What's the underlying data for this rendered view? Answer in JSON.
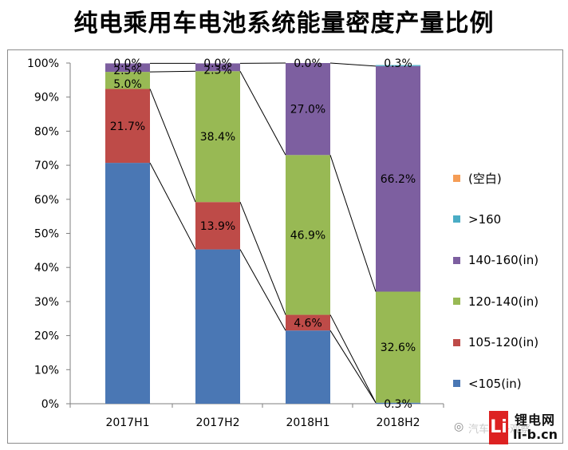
{
  "title": "纯电乘用车电池系统能量密度产量比例",
  "chart_data": {
    "type": "bar",
    "stacked": true,
    "percent": true,
    "categories": [
      "2017H1",
      "2017H2",
      "2018H1",
      "2018H2"
    ],
    "y_ticks": [
      "0%",
      "10%",
      "20%",
      "30%",
      "40%",
      "50%",
      "60%",
      "70%",
      "80%",
      "90%",
      "100%"
    ],
    "ylim": [
      0,
      100
    ],
    "series": [
      {
        "name": "<105(in)",
        "color": "#4a77b4",
        "values": [
          70.7,
          45.3,
          21.5,
          0.3
        ],
        "labels": [
          "",
          "",
          "",
          "0.3%"
        ]
      },
      {
        "name": "105-120(in)",
        "color": "#be4b48",
        "values": [
          21.7,
          13.9,
          4.6,
          0.0
        ],
        "labels": [
          "21.7%",
          "13.9%",
          "4.6%",
          ""
        ]
      },
      {
        "name": "120-140(in)",
        "color": "#98b954",
        "values": [
          5.0,
          38.4,
          46.9,
          32.6
        ],
        "labels": [
          "5.0%",
          "38.4%",
          "46.9%",
          "32.6%"
        ]
      },
      {
        "name": "140-160(in)",
        "color": "#7d5fa0",
        "values": [
          2.5,
          2.3,
          27.0,
          66.2
        ],
        "labels": [
          "2.5%",
          "2.3%",
          "27.0%",
          "66.2%"
        ]
      },
      {
        "name": ">160",
        "color": "#4aacc5",
        "values": [
          0.0,
          0.0,
          0.0,
          0.3
        ],
        "labels": [
          "0.0%",
          "0.0%",
          "0.0%",
          "0.3%"
        ]
      },
      {
        "name": "(空白)",
        "color": "#f59d56",
        "values": [
          0,
          0,
          0,
          0
        ],
        "labels": [
          "",
          "",
          "",
          ""
        ]
      }
    ],
    "legend_position": "right",
    "grid": false
  },
  "watermark": {
    "logo_letter": "Li",
    "name": "锂电网",
    "domain": "li-b.cn",
    "faded_text": "汽车电子观察"
  }
}
